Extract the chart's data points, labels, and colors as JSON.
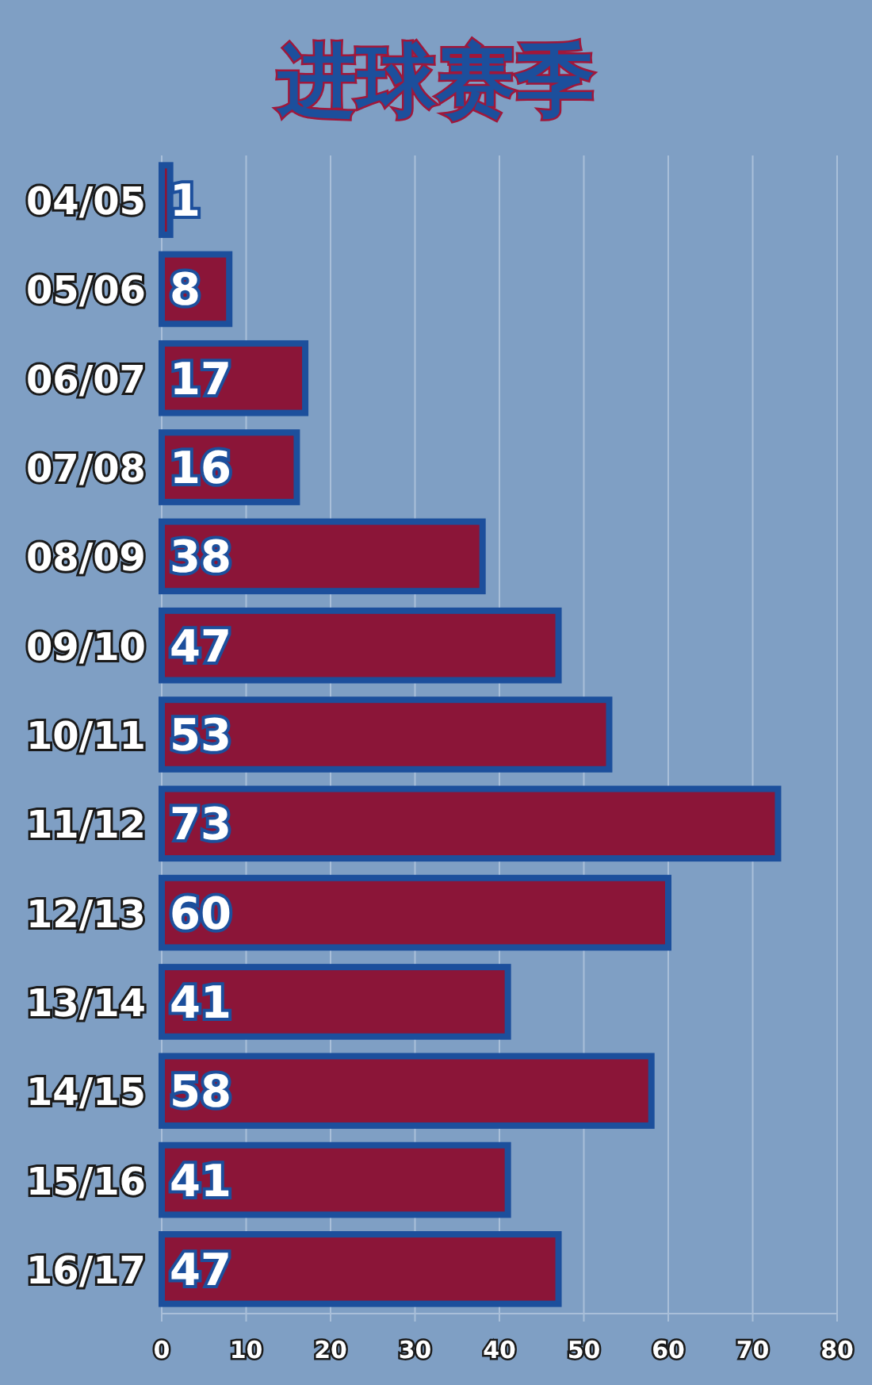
{
  "chart_data": {
    "type": "bar",
    "orientation": "horizontal",
    "title": "进球赛季",
    "categories": [
      "04/05",
      "05/06",
      "06/07",
      "07/08",
      "08/09",
      "09/10",
      "10/11",
      "11/12",
      "12/13",
      "13/14",
      "14/15",
      "15/16",
      "16/17"
    ],
    "values": [
      1,
      8,
      17,
      16,
      38,
      47,
      53,
      73,
      60,
      41,
      58,
      41,
      47
    ],
    "color": "#8b1538",
    "xlim": [
      0,
      80
    ],
    "xticks": [
      0,
      10,
      20,
      30,
      40,
      50,
      60,
      70,
      80
    ],
    "grid": "x",
    "data_labels": true
  }
}
